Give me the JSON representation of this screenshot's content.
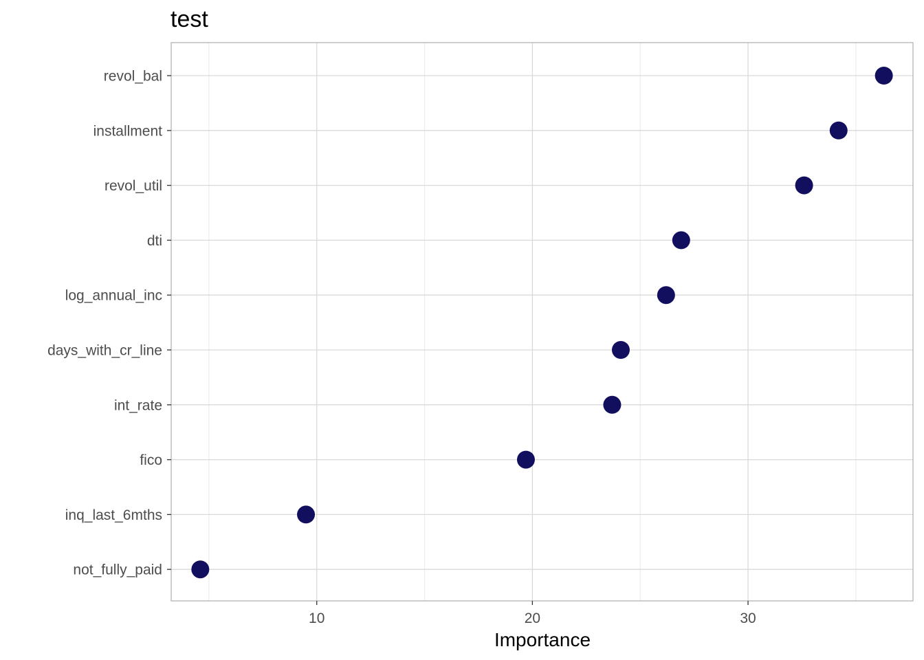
{
  "chart_data": {
    "type": "scatter",
    "title": "test",
    "xlabel": "Importance",
    "ylabel": "",
    "categories": [
      "revol_bal",
      "installment",
      "revol_util",
      "dti",
      "log_annual_inc",
      "days_with_cr_line",
      "int_rate",
      "fico",
      "inq_last_6mths",
      "not_fully_paid"
    ],
    "values": [
      36.3,
      34.2,
      32.6,
      26.9,
      26.2,
      24.1,
      23.7,
      19.7,
      9.5,
      4.6
    ],
    "xlim": [
      3.25,
      37.65
    ],
    "xticks": [
      10,
      20,
      30
    ],
    "xtick_labels": [
      "10",
      "20",
      "30"
    ],
    "xminor": [
      5,
      15,
      25,
      35
    ],
    "grid": true,
    "point_color": "#120f5f",
    "panel_border_color": "#b3b3b3",
    "grid_major_color": "#d9d9d9",
    "grid_minor_color": "#ececec"
  }
}
